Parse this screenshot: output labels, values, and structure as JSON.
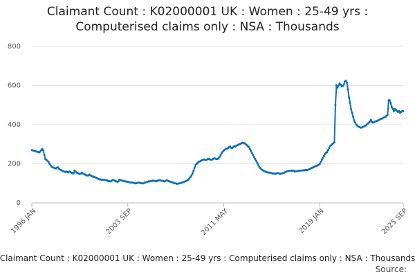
{
  "chart_data": {
    "type": "line",
    "title": "Claimant Count : K02000001 UK : Women : 25-49 yrs : Computerised claims only : NSA : Thousands",
    "footer": "Claimant Count : K02000001 UK : Women : 25-49 yrs : Computerised claims only : NSA : Thousands",
    "source": "Source:",
    "color": "#0f70b7",
    "grid": true,
    "ylim": [
      0,
      800
    ],
    "yticks": [
      0,
      200,
      400,
      600,
      800
    ],
    "xticks": [
      "1996 JAN",
      "2003 SEP",
      "2011 MAY",
      "2019 JAN",
      "2025 SEP"
    ],
    "x": [
      "1996 JAN",
      "1996 FEB",
      "1996 MAR",
      "1996 APR",
      "1996 MAY",
      "1996 JUN",
      "1996 JUL",
      "1996 AUG",
      "1996 SEP",
      "1996 OCT",
      "1996 NOV",
      "1996 DEC",
      "1997 JAN",
      "1997 FEB",
      "1997 MAR",
      "1997 APR",
      "1997 MAY",
      "1997 JUN",
      "1997 JUL",
      "1997 AUG",
      "1997 SEP",
      "1997 OCT",
      "1997 NOV",
      "1997 DEC",
      "1998 JAN",
      "1998 FEB",
      "1998 MAR",
      "1998 APR",
      "1998 MAY",
      "1998 JUN",
      "1998 JUL",
      "1998 AUG",
      "1998 SEP",
      "1998 OCT",
      "1998 NOV",
      "1998 DEC",
      "1999 JAN",
      "1999 FEB",
      "1999 MAR",
      "1999 APR",
      "1999 MAY",
      "1999 JUN",
      "1999 JUL",
      "1999 AUG",
      "1999 SEP",
      "1999 OCT",
      "1999 NOV",
      "1999 DEC",
      "2000 JAN",
      "2000 FEB",
      "2000 MAR",
      "2000 APR",
      "2000 MAY",
      "2000 JUN",
      "2000 JUL",
      "2000 AUG",
      "2000 SEP",
      "2000 OCT",
      "2000 NOV",
      "2000 DEC",
      "2001 JAN",
      "2001 FEB",
      "2001 MAR",
      "2001 APR",
      "2001 MAY",
      "2001 JUN",
      "2001 JUL",
      "2001 AUG",
      "2001 SEP",
      "2001 OCT",
      "2001 NOV",
      "2001 DEC",
      "2002 JAN",
      "2002 FEB",
      "2002 MAR",
      "2002 APR",
      "2002 MAY",
      "2002 JUN",
      "2002 JUL",
      "2002 AUG",
      "2002 SEP",
      "2002 OCT",
      "2002 NOV",
      "2002 DEC",
      "2003 JAN",
      "2003 FEB",
      "2003 MAR",
      "2003 APR",
      "2003 MAY",
      "2003 JUN",
      "2003 JUL",
      "2003 AUG",
      "2003 SEP",
      "2003 OCT",
      "2003 NOV",
      "2003 DEC",
      "2004 JAN",
      "2004 FEB",
      "2004 MAR",
      "2004 APR",
      "2004 MAY",
      "2004 JUN",
      "2004 JUL",
      "2004 AUG",
      "2004 SEP",
      "2004 OCT",
      "2004 NOV",
      "2004 DEC",
      "2005 JAN",
      "2005 FEB",
      "2005 MAR",
      "2005 APR",
      "2005 MAY",
      "2005 JUN",
      "2005 JUL",
      "2005 AUG",
      "2005 SEP",
      "2005 OCT",
      "2005 NOV",
      "2005 DEC",
      "2006 JAN",
      "2006 FEB",
      "2006 MAR",
      "2006 APR",
      "2006 MAY",
      "2006 JUN",
      "2006 JUL",
      "2006 AUG",
      "2006 SEP",
      "2006 OCT",
      "2006 NOV",
      "2006 DEC",
      "2007 JAN",
      "2007 FEB",
      "2007 MAR",
      "2007 APR",
      "2007 MAY",
      "2007 JUN",
      "2007 JUL",
      "2007 AUG",
      "2007 SEP",
      "2007 OCT",
      "2007 NOV",
      "2007 DEC",
      "2008 JAN",
      "2008 FEB",
      "2008 MAR",
      "2008 APR",
      "2008 MAY",
      "2008 JUN",
      "2008 JUL",
      "2008 AUG",
      "2008 SEP",
      "2008 OCT",
      "2008 NOV",
      "2008 DEC",
      "2009 JAN",
      "2009 FEB",
      "2009 MAR",
      "2009 APR",
      "2009 MAY",
      "2009 JUN",
      "2009 JUL",
      "2009 AUG",
      "2009 SEP",
      "2009 OCT",
      "2009 NOV",
      "2009 DEC",
      "2010 JAN",
      "2010 FEB",
      "2010 MAR",
      "2010 APR",
      "2010 MAY",
      "2010 JUN",
      "2010 JUL",
      "2010 AUG",
      "2010 SEP",
      "2010 OCT",
      "2010 NOV",
      "2010 DEC",
      "2011 JAN",
      "2011 FEB",
      "2011 MAR",
      "2011 APR",
      "2011 MAY",
      "2011 JUN",
      "2011 JUL",
      "2011 AUG",
      "2011 SEP",
      "2011 OCT",
      "2011 NOV",
      "2011 DEC",
      "2012 JAN",
      "2012 FEB",
      "2012 MAR",
      "2012 APR",
      "2012 MAY",
      "2012 JUN",
      "2012 JUL",
      "2012 AUG",
      "2012 SEP",
      "2012 OCT",
      "2012 NOV",
      "2012 DEC",
      "2013 JAN",
      "2013 FEB",
      "2013 MAR",
      "2013 APR",
      "2013 MAY",
      "2013 JUN",
      "2013 JUL",
      "2013 AUG",
      "2013 SEP",
      "2013 OCT",
      "2013 NOV",
      "2013 DEC",
      "2014 JAN",
      "2014 FEB",
      "2014 MAR",
      "2014 APR",
      "2014 MAY",
      "2014 JUN",
      "2014 JUL",
      "2014 AUG",
      "2014 SEP",
      "2014 OCT",
      "2014 NOV",
      "2014 DEC",
      "2015 JAN",
      "2015 FEB",
      "2015 MAR",
      "2015 APR",
      "2015 MAY",
      "2015 JUN",
      "2015 JUL",
      "2015 AUG",
      "2015 SEP",
      "2015 OCT",
      "2015 NOV",
      "2015 DEC",
      "2016 JAN",
      "2016 FEB",
      "2016 MAR",
      "2016 APR",
      "2016 MAY",
      "2016 JUN",
      "2016 JUL",
      "2016 AUG",
      "2016 SEP",
      "2016 OCT",
      "2016 NOV",
      "2016 DEC",
      "2017 JAN",
      "2017 FEB",
      "2017 MAR",
      "2017 APR",
      "2017 MAY",
      "2017 JUN",
      "2017 JUL",
      "2017 AUG",
      "2017 SEP",
      "2017 OCT",
      "2017 NOV",
      "2017 DEC",
      "2018 JAN",
      "2018 FEB",
      "2018 MAR",
      "2018 APR",
      "2018 MAY",
      "2018 JUN",
      "2018 JUL",
      "2018 AUG",
      "2018 SEP",
      "2018 OCT",
      "2018 NOV",
      "2018 DEC",
      "2019 JAN",
      "2019 FEB",
      "2019 MAR",
      "2019 APR",
      "2019 MAY",
      "2019 JUN",
      "2019 JUL",
      "2019 AUG",
      "2019 SEP",
      "2019 OCT",
      "2019 NOV",
      "2019 DEC",
      "2020 JAN",
      "2020 FEB",
      "2020 MAR",
      "2020 APR",
      "2020 MAY",
      "2020 JUN",
      "2020 JUL",
      "2020 AUG",
      "2020 SEP",
      "2020 OCT",
      "2020 NOV",
      "2020 DEC",
      "2021 JAN",
      "2021 FEB",
      "2021 MAR",
      "2021 APR",
      "2021 MAY",
      "2021 JUN",
      "2021 JUL",
      "2021 AUG",
      "2021 SEP",
      "2021 OCT",
      "2021 NOV",
      "2021 DEC",
      "2022 JAN",
      "2022 FEB",
      "2022 MAR",
      "2022 APR",
      "2022 MAY",
      "2022 JUN",
      "2022 JUL",
      "2022 AUG",
      "2022 SEP",
      "2022 OCT",
      "2022 NOV",
      "2022 DEC",
      "2023 JAN",
      "2023 FEB",
      "2023 MAR",
      "2023 APR",
      "2023 MAY",
      "2023 JUN",
      "2023 JUL",
      "2023 AUG",
      "2023 SEP",
      "2023 OCT",
      "2023 NOV",
      "2023 DEC",
      "2024 JAN",
      "2024 FEB",
      "2024 MAR",
      "2024 APR",
      "2024 MAY",
      "2024 JUN",
      "2024 JUL",
      "2024 AUG",
      "2024 SEP",
      "2024 OCT",
      "2024 NOV",
      "2024 DEC",
      "2025 JAN",
      "2025 FEB",
      "2025 MAR",
      "2025 APR",
      "2025 MAY",
      "2025 JUN",
      "2025 JUL",
      "2025 AUG",
      "2025 SEP"
    ],
    "values": [
      270,
      268,
      267,
      265,
      263,
      262,
      260,
      258,
      262,
      270,
      276,
      268,
      245,
      225,
      220,
      215,
      210,
      200,
      192,
      185,
      182,
      180,
      178,
      176,
      180,
      182,
      175,
      170,
      168,
      165,
      162,
      160,
      158,
      160,
      158,
      156,
      160,
      158,
      155,
      152,
      150,
      165,
      160,
      155,
      152,
      150,
      148,
      150,
      155,
      150,
      148,
      145,
      142,
      140,
      140,
      145,
      142,
      138,
      135,
      135,
      132,
      130,
      128,
      125,
      122,
      120,
      120,
      118,
      118,
      118,
      117,
      116,
      115,
      112,
      112,
      110,
      110,
      115,
      118,
      115,
      112,
      110,
      108,
      110,
      118,
      116,
      115,
      113,
      112,
      110,
      110,
      108,
      108,
      106,
      105,
      104,
      104,
      103,
      102,
      100,
      100,
      102,
      104,
      103,
      102,
      101,
      100,
      100,
      103,
      105,
      106,
      108,
      110,
      110,
      112,
      112,
      114,
      113,
      112,
      110,
      112,
      114,
      116,
      115,
      114,
      113,
      112,
      110,
      112,
      115,
      114,
      112,
      110,
      108,
      106,
      105,
      102,
      100,
      100,
      98,
      98,
      100,
      100,
      102,
      104,
      106,
      108,
      110,
      112,
      115,
      118,
      125,
      132,
      140,
      150,
      165,
      180,
      195,
      200,
      205,
      210,
      212,
      215,
      218,
      220,
      222,
      220,
      220,
      222,
      225,
      224,
      222,
      220,
      222,
      226,
      228,
      226,
      224,
      225,
      228,
      235,
      245,
      255,
      262,
      268,
      272,
      275,
      278,
      280,
      285,
      288,
      282,
      280,
      285,
      290,
      288,
      292,
      295,
      298,
      300,
      302,
      305,
      308,
      305,
      305,
      300,
      295,
      290,
      285,
      275,
      265,
      255,
      245,
      235,
      225,
      215,
      205,
      195,
      185,
      178,
      172,
      168,
      165,
      162,
      160,
      158,
      156,
      155,
      155,
      153,
      152,
      150,
      150,
      148,
      150,
      152,
      152,
      150,
      148,
      150,
      150,
      152,
      155,
      158,
      160,
      162,
      163,
      164,
      165,
      165,
      164,
      165,
      160,
      162,
      162,
      163,
      164,
      165,
      165,
      166,
      166,
      167,
      168,
      168,
      168,
      170,
      172,
      175,
      178,
      180,
      182,
      185,
      188,
      190,
      192,
      195,
      200,
      210,
      220,
      230,
      240,
      250,
      255,
      260,
      270,
      280,
      290,
      295,
      300,
      305,
      310,
      500,
      600,
      590,
      600,
      610,
      605,
      595,
      598,
      605,
      620,
      625,
      615,
      580,
      540,
      510,
      480,
      460,
      440,
      420,
      410,
      400,
      395,
      390,
      388,
      385,
      385,
      388,
      390,
      392,
      395,
      400,
      405,
      410,
      415,
      425,
      415,
      410,
      412,
      415,
      418,
      420,
      422,
      425,
      428,
      430,
      432,
      435,
      438,
      440,
      445,
      450,
      525,
      525,
      510,
      490,
      480,
      470,
      480,
      475,
      470,
      465,
      470,
      460,
      465,
      470,
      468
    ]
  }
}
